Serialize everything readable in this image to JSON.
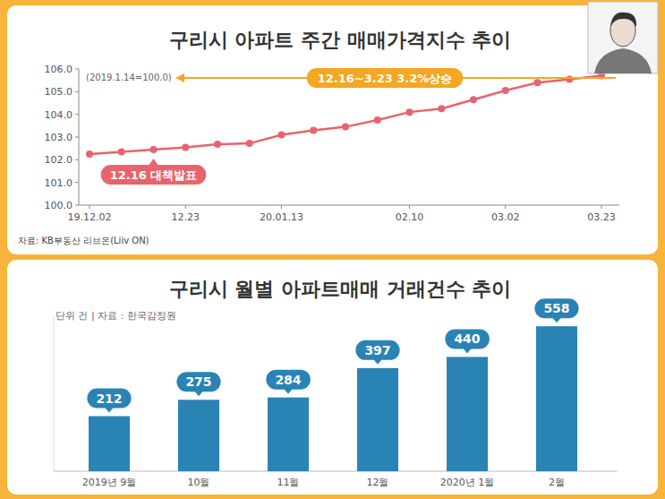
{
  "chart_data": [
    {
      "type": "line",
      "title": "구리시 아파트 주간 매매가격지수 추이",
      "subtitle": "(2019.1.14=100.0)",
      "annotations": [
        "12.16~3.23 3.2%상승",
        "12.16 대책발표"
      ],
      "source": "자료: KB부동산 리브온(Liiv ON)",
      "categories": [
        "19.12.02",
        null,
        null,
        "12.23",
        null,
        null,
        "20.01.13",
        null,
        null,
        null,
        "02.10",
        null,
        null,
        "03.02",
        null,
        null,
        "03.23"
      ],
      "values": [
        102.25,
        102.35,
        102.45,
        102.55,
        102.68,
        102.72,
        103.1,
        103.3,
        103.45,
        103.75,
        104.1,
        104.25,
        104.65,
        105.05,
        105.4,
        105.55,
        105.7
      ],
      "color": "#e8646c",
      "marker": "circle",
      "ylim": [
        100,
        106
      ],
      "yticks": [
        {
          "value": 100,
          "label": "100.0"
        },
        {
          "value": 101,
          "label": "101.0"
        },
        {
          "value": 102,
          "label": "102.0"
        },
        {
          "value": 103,
          "label": "103.0"
        },
        {
          "value": 104,
          "label": "104.0"
        },
        {
          "value": 105,
          "label": "105.0"
        },
        {
          "value": 106,
          "label": "106.0"
        }
      ],
      "grid": false
    },
    {
      "type": "bar",
      "title": "구리시 월별 아파트매매 거래건수 추이",
      "subtitle": "단위 건 | 자료 : 한국감정원",
      "categories": [
        "2019년 9월",
        "10월",
        "11월",
        "12월",
        "2020년 1월",
        "2월"
      ],
      "values": [
        212,
        275,
        284,
        397,
        440,
        558
      ],
      "color": "#2a83b5",
      "ylim": [
        0,
        600
      ],
      "data_labels": true,
      "tick_labels": "x",
      "grid": false
    }
  ]
}
